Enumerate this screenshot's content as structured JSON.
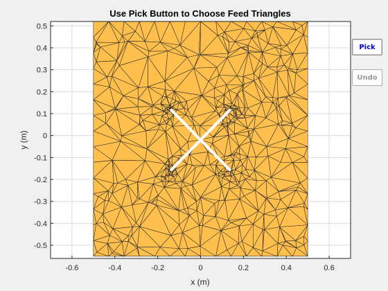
{
  "figure": {
    "title": "Use Pick Button to Choose Feed Triangles",
    "xlabel": "x (m)",
    "ylabel": "y (m)",
    "xticks": [
      "-0.6",
      "-0.4",
      "-0.2",
      "0",
      "0.2",
      "0.4",
      "0.6"
    ],
    "yticks": [
      "0.5",
      "0.4",
      "0.3",
      "0.2",
      "0.1",
      "0",
      "-0.1",
      "-0.2",
      "-0.3",
      "-0.4",
      "-0.5"
    ],
    "mesh_color": "#ffbf4d",
    "edge_color": "#2b2b2b",
    "feed_color": "#ffffff"
  },
  "controls": {
    "pick_label": "Pick",
    "undo_label": "Undo"
  },
  "chart_data": {
    "type": "scatter",
    "title": "Use Pick Button to Choose Feed Triangles",
    "xlabel": "x (m)",
    "ylabel": "y (m)",
    "xlim": [
      -0.7,
      0.7
    ],
    "ylim": [
      -0.56,
      0.52
    ],
    "grid": true,
    "plate": {
      "x": [
        -0.5,
        0.5
      ],
      "y": [
        -0.55,
        0.52
      ]
    },
    "feed_lines": [
      {
        "x": [
          -0.14,
          0.14
        ],
        "y": [
          0.12,
          -0.16
        ]
      },
      {
        "x": [
          -0.14,
          0.14
        ],
        "y": [
          -0.16,
          0.12
        ]
      }
    ],
    "refinement_centers": [
      [
        -0.14,
        0.12
      ],
      [
        0.14,
        0.12
      ],
      [
        -0.14,
        -0.16
      ],
      [
        0.14,
        -0.16
      ]
    ]
  }
}
